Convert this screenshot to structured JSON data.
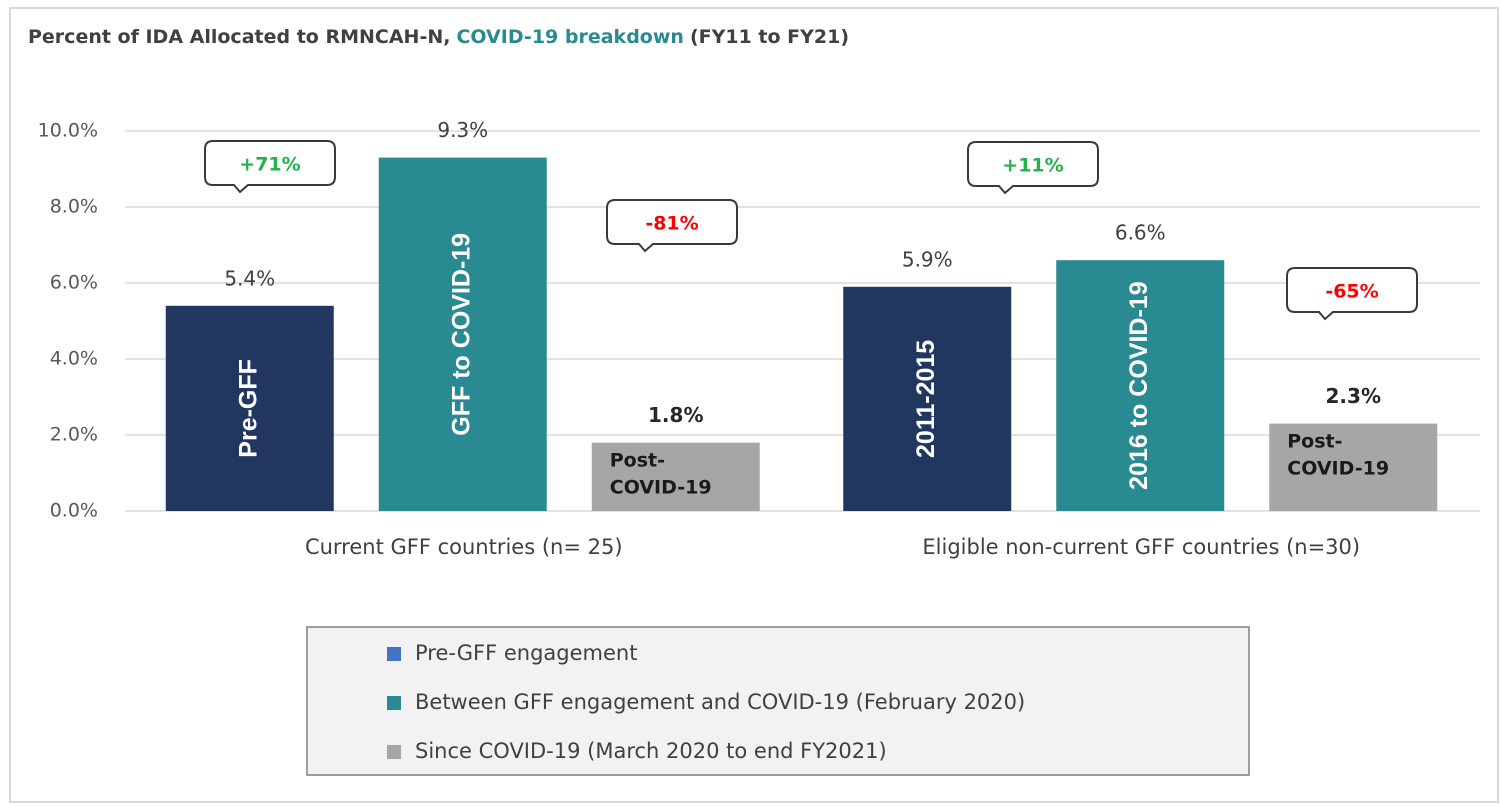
{
  "chart_data": {
    "type": "bar",
    "title": [
      {
        "text": "Percent of IDA Allocated to RMNCAH-N,",
        "color": "#404040"
      },
      {
        "text": "COVID-19 breakdown",
        "color": "#2a8a91"
      },
      {
        "text": "(FY11 to FY21)",
        "color": "#404040"
      }
    ],
    "categories": [
      "Current GFF countries (n= 25)",
      "Eligible non-current GFF countries (n=30)"
    ],
    "series": [
      {
        "name": "Pre-GFF engagement",
        "color": "#22375f",
        "legend_color": "#4472c4",
        "values": [
          5.4,
          5.9
        ],
        "value_labels": [
          "5.4%",
          "5.9%"
        ],
        "bar_labels": [
          "Pre-GFF",
          "2011-2015"
        ]
      },
      {
        "name": "Between GFF engagement and COVID-19 (February 2020)",
        "color": "#2a8a91",
        "values": [
          9.3,
          6.6
        ],
        "value_labels": [
          "9.3%",
          "6.6%"
        ],
        "bar_labels": [
          "GFF to COVID-19",
          "2016 to COVID-19"
        ]
      },
      {
        "name": "Since COVID-19 (March 2020 to end FY2021)",
        "color": "#a6a6a6",
        "values": [
          1.8,
          2.3
        ],
        "value_labels": [
          "1.8%",
          "2.3%"
        ],
        "bar_labels": [
          "Post-COVID-19",
          "Post-COVID-19"
        ]
      }
    ],
    "annotations": [
      {
        "text": "+71%",
        "color": "#22b14c"
      },
      {
        "text": "-81%",
        "color": "#ff0000"
      },
      {
        "text": "+11%",
        "color": "#22b14c"
      },
      {
        "text": "-65%",
        "color": "#ff0000"
      }
    ],
    "ylim": [
      0,
      10
    ],
    "yticks": [
      {
        "value": 0,
        "label": "0.0%"
      },
      {
        "value": 2,
        "label": "2.0%"
      },
      {
        "value": 4,
        "label": "4.0%"
      },
      {
        "value": 6,
        "label": "6.0%"
      },
      {
        "value": 8,
        "label": "8.0%"
      },
      {
        "value": 10,
        "label": "10.0%"
      }
    ],
    "grid": true
  }
}
